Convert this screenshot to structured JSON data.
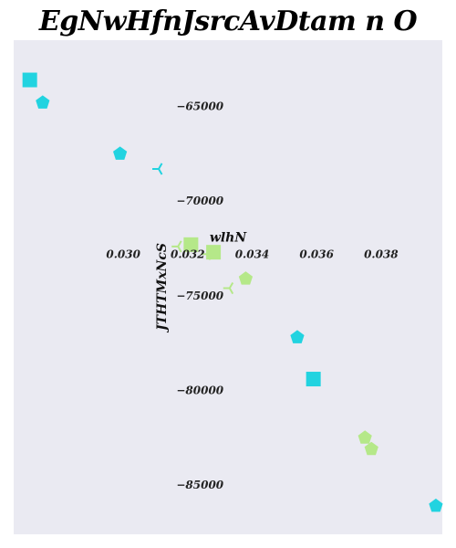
{
  "chart_data": {
    "type": "scatter",
    "title": "EgNwHfnJsrcAvDtam n O",
    "xlabel": "wlhN",
    "ylabel": "JTHTMxNcS",
    "xlim": [
      0.0266,
      0.0399
    ],
    "ylim": [
      -87600,
      -61500
    ],
    "x_ticks": [
      0.03,
      0.032,
      0.034,
      0.036,
      0.038
    ],
    "x_tick_labels": [
      "0.030",
      "0.032",
      "0.034",
      "0.036",
      "0.038"
    ],
    "y_ticks": [
      -65000,
      -70000,
      -75000,
      -80000,
      -85000
    ],
    "y_tick_labels": [
      "−65000",
      "−70000",
      "−75000",
      "−80000",
      "−85000"
    ],
    "grid": false,
    "background": "#eaeaf2",
    "series": [
      {
        "color": "#22d3e0",
        "points": [
          {
            "x": 0.0271,
            "y": -63600,
            "marker": "square"
          },
          {
            "x": 0.0275,
            "y": -64800,
            "marker": "pentagon"
          },
          {
            "x": 0.0299,
            "y": -67500,
            "marker": "pentagon"
          },
          {
            "x": 0.0311,
            "y": -68300,
            "marker": "tri_left"
          },
          {
            "x": 0.0354,
            "y": -77200,
            "marker": "pentagon"
          },
          {
            "x": 0.0359,
            "y": -79400,
            "marker": "square"
          },
          {
            "x": 0.0397,
            "y": -86100,
            "marker": "pentagon"
          }
        ]
      },
      {
        "color": "#b5e889",
        "points": [
          {
            "x": 0.0321,
            "y": -72300,
            "marker": "square"
          },
          {
            "x": 0.0317,
            "y": -72400,
            "marker": "tri_left"
          },
          {
            "x": 0.0328,
            "y": -72700,
            "marker": "square"
          },
          {
            "x": 0.0326,
            "y": -72800,
            "marker": "tri_left"
          },
          {
            "x": 0.0338,
            "y": -74100,
            "marker": "pentagon"
          },
          {
            "x": 0.0333,
            "y": -74600,
            "marker": "tri_left"
          },
          {
            "x": 0.0375,
            "y": -82500,
            "marker": "pentagon"
          },
          {
            "x": 0.0377,
            "y": -83100,
            "marker": "pentagon"
          }
        ]
      }
    ]
  }
}
